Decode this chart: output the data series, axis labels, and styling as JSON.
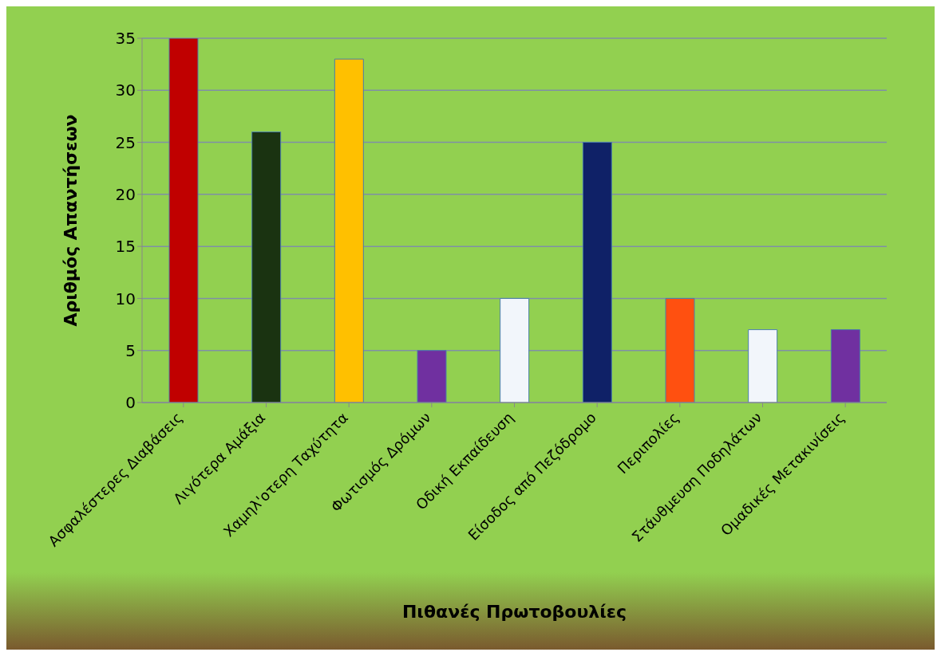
{
  "chart_data": {
    "type": "bar",
    "xlabel": "Πιθανές Πρωτοβουλίες",
    "ylabel": "Αριθμός Απαντήσεων",
    "categories": [
      "Ασφαλέστερες Διαβάσεις",
      "Λιγότερα Αμάξια",
      "Χαμηλ'οτερη Ταχύτητα",
      "Φωτισμός Δρόμων",
      "Οδική Εκπαίδευση",
      "Είσοδος από Πεζόδρομο",
      "Περιπολίες",
      "Στάυθμευση Ποδηλάτων",
      "Ομαδικές Μετακινίσεις"
    ],
    "values": [
      35,
      26,
      33,
      5,
      10,
      25,
      10,
      7,
      7
    ],
    "colors": [
      "#c00000",
      "#1a3311",
      "#ffc000",
      "#7030a0",
      "#f2f6fb",
      "#0f2167",
      "#ff5010",
      "#f2f6fb",
      "#7030a0"
    ],
    "ylim": [
      0,
      35
    ],
    "yticks": [
      0,
      5,
      10,
      15,
      20,
      25,
      30,
      35
    ],
    "grid": "y"
  }
}
